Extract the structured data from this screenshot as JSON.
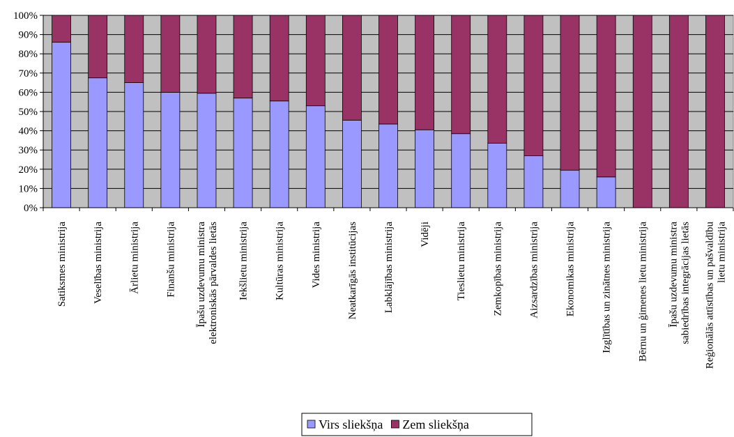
{
  "chart_data": {
    "type": "bar",
    "stacked": "percent",
    "title": "",
    "xlabel": "",
    "ylabel": "",
    "ylim": [
      0,
      100
    ],
    "y_ticks": [
      "0%",
      "10%",
      "20%",
      "30%",
      "40%",
      "50%",
      "60%",
      "70%",
      "80%",
      "90%",
      "100%"
    ],
    "grid": true,
    "legend_position": "bottom",
    "categories": [
      [
        "Satiksmes ministrija"
      ],
      [
        "Veselības ministrija"
      ],
      [
        "Ārlietu ministrija"
      ],
      [
        "Finanšu ministrija"
      ],
      [
        "Īpašu uzdevumu ministra",
        "elektroniskās pārvaldes lietās"
      ],
      [
        "Iekšlietu ministrija"
      ],
      [
        "Kultūras ministrija"
      ],
      [
        "Vides ministrija"
      ],
      [
        "Neatkarīgās institūcijas"
      ],
      [
        "Labklājības ministrija"
      ],
      [
        "Vidēji"
      ],
      [
        "Tieslietu ministrija"
      ],
      [
        "Zemkopības ministrija"
      ],
      [
        "Aizsardzības ministrija"
      ],
      [
        "Ekonomikas ministrija"
      ],
      [
        "Izglītības un zinātnes ministrija"
      ],
      [
        "Bērnu un ģimenes lietu ministrija"
      ],
      [
        "Īpašu uzdevumu ministra",
        "sabiedrības integrācijas lietās"
      ],
      [
        "Reģionālās attīstības un pašvaldību",
        "lietu ministrija"
      ]
    ],
    "series": [
      {
        "name": "Virs sliekšņa",
        "color": "#9999ff",
        "values": [
          86,
          67.5,
          65,
          60,
          59.5,
          57,
          55.5,
          53,
          45.5,
          43.5,
          40.5,
          38.5,
          33.5,
          27,
          19.5,
          16,
          0,
          0,
          0
        ]
      },
      {
        "name": "Zem sliekšņa",
        "color": "#993366",
        "values": [
          14,
          32.5,
          35,
          40,
          40.5,
          43,
          44.5,
          47,
          54.5,
          56.5,
          59.5,
          61.5,
          66.5,
          73,
          80.5,
          84,
          100,
          100,
          100
        ]
      }
    ],
    "plot_background": "#c0c0c0"
  }
}
